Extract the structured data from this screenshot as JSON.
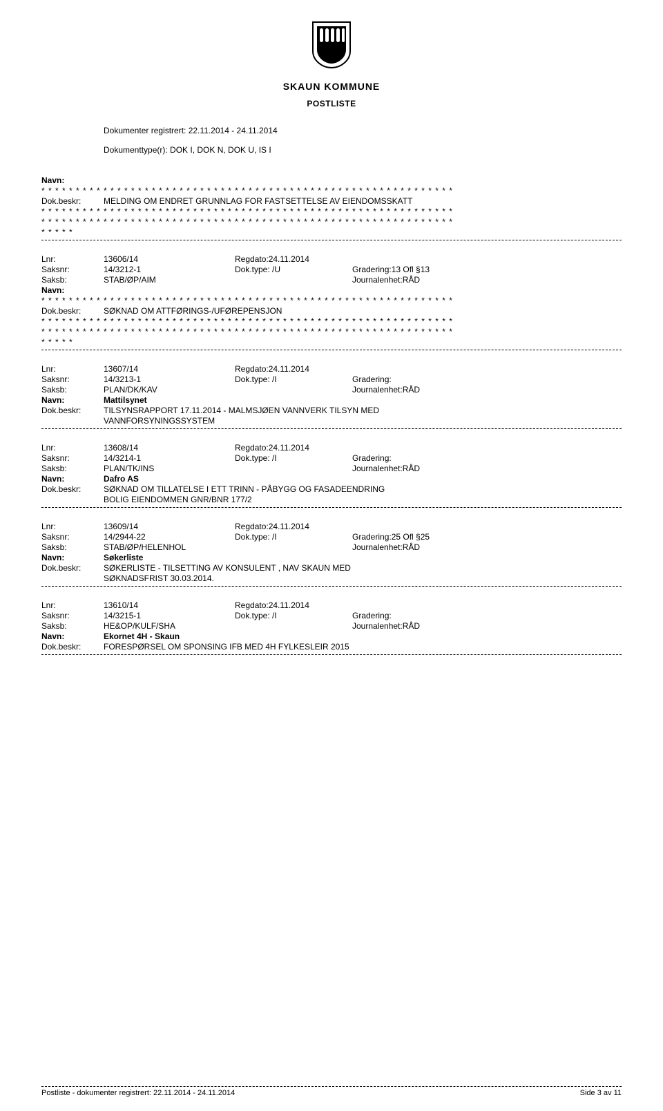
{
  "header": {
    "kommune": "SKAUN KOMMUNE",
    "postliste": "POSTLISTE"
  },
  "meta": {
    "line1": "Dokumenter registrert: 22.11.2014 - 24.11.2014",
    "line2": "Dokumenttype(r): DOK I, DOK N, DOK U, IS I"
  },
  "labels": {
    "navn": "Navn:",
    "dokbeskr": "Dok.beskr:",
    "lnr": "Lnr:",
    "regdato": "Regdato:",
    "saksnr": "Saksnr:",
    "doktype": "Dok.type:",
    "gradering": "Gradering:",
    "saksb": "Saksb:",
    "journalenhet": "Journalenhet:"
  },
  "stars_full": "* * * * * * * * * * * * * * * * * * * * * * * * * * * * * * * * * * * * * * * * * * * * * * * * * * * * * * * * * * * *",
  "stars_short": "* * * * *",
  "entries": [
    {
      "type": "stars_block_top",
      "beskr": "MELDING OM ENDRET GRUNNLAG FOR FASTSETTELSE AV EIENDOMSSKATT"
    },
    {
      "type": "stars_block",
      "lnr": "13606/14",
      "regdato": "24.11.2014",
      "saksnr": "14/3212-1",
      "doktype": "/U",
      "gradering": "13 Ofl §13",
      "saksb": "STAB/ØP/AIM",
      "journalenhet": "RÅD",
      "beskr": "SØKNAD OM ATTFØRINGS-/UFØREPENSJON"
    },
    {
      "type": "normal",
      "lnr": "13607/14",
      "regdato": "24.11.2014",
      "saksnr": "14/3213-1",
      "doktype": "/I",
      "gradering": "",
      "saksb": "PLAN/DK/KAV",
      "journalenhet": "RÅD",
      "navn": "Mattilsynet",
      "beskr": "TILSYNSRAPPORT 17.11.2014 -  MALMSJØEN VANNVERK TILSYN MED",
      "beskr2": "VANNFORSYNINGSSYSTEM"
    },
    {
      "type": "normal",
      "lnr": "13608/14",
      "regdato": "24.11.2014",
      "saksnr": "14/3214-1",
      "doktype": "/I",
      "gradering": "",
      "saksb": "PLAN/TK/INS",
      "journalenhet": "RÅD",
      "navn": "Dafro AS",
      "beskr": "SØKNAD OM TILLATELSE I ETT TRINN - PÅBYGG OG FASADEENDRING",
      "beskr2": "BOLIG EIENDOMMEN GNR/BNR 177/2"
    },
    {
      "type": "normal",
      "lnr": "13609/14",
      "regdato": "24.11.2014",
      "saksnr": "14/2944-22",
      "doktype": "/I",
      "gradering": "25 Ofl §25",
      "saksb": "STAB/ØP/HELENHOL",
      "journalenhet": "RÅD",
      "navn": "Søkerliste",
      "beskr": "SØKERLISTE - TILSETTING AV KONSULENT , NAV SKAUN MED",
      "beskr2": "SØKNADSFRIST 30.03.2014."
    },
    {
      "type": "normal",
      "lnr": "13610/14",
      "regdato": "24.11.2014",
      "saksnr": "14/3215-1",
      "doktype": "/I",
      "gradering": "",
      "saksb": "HE&OP/KULF/SHA",
      "journalenhet": "RÅD",
      "navn": "Ekornet 4H - Skaun",
      "beskr": "FORESPØRSEL OM SPONSING IFB MED 4H FYLKESLEIR 2015"
    }
  ],
  "footer": {
    "left": "Postliste - dokumenter registrert: 22.11.2014 - 24.11.2014",
    "right": "Side 3 av 11"
  },
  "logo": {
    "shield_fill": "#000000",
    "width": 62,
    "height": 70
  }
}
